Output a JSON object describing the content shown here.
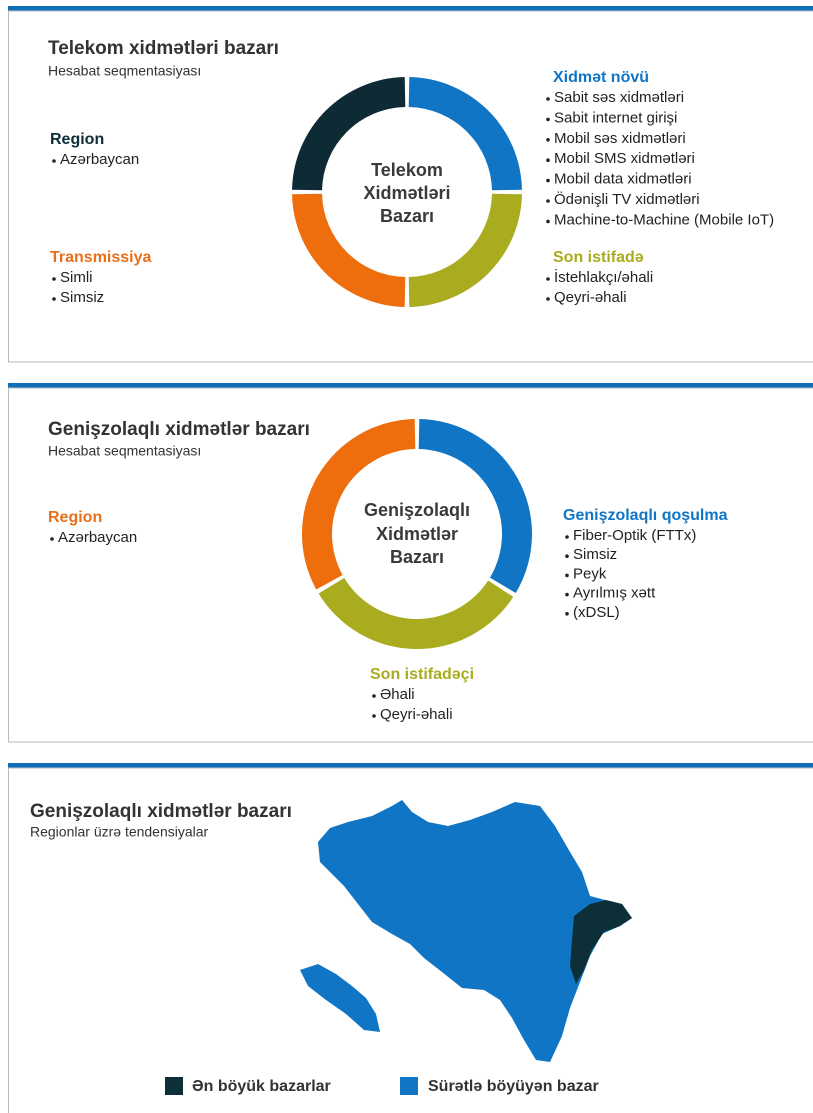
{
  "panels": [
    {
      "title": "Telekom xidmətləri bazarı",
      "subtitle": "Hesabat seqmentasiyası",
      "center_label": [
        "Telekom",
        "Xidmətləri",
        "Bazarı"
      ],
      "groups": [
        {
          "heading": "Region",
          "items": [
            "Azərbaycan"
          ]
        },
        {
          "heading": "Transmissiya",
          "items": [
            "Simli",
            "Simsiz"
          ]
        },
        {
          "heading": "Xidmət növü",
          "items": [
            "Sabit səs xidmətləri",
            "Sabit internet girişi",
            "Mobil səs xidmətləri",
            "Mobil SMS xidmətləri",
            "Mobil data xidmətləri",
            "Ödənişli TV xidmətləri",
            "Machine-to-Machine (Mobile IoT)"
          ]
        },
        {
          "heading": "Son istifadə",
          "items": [
            "İstehlakçı/əhali",
            "Qeyri-əhali"
          ]
        }
      ]
    },
    {
      "title": "Genişzolaqlı xidmətlər bazarı",
      "subtitle": "Hesabat seqmentasiyası",
      "center_label": [
        "Genişzolaqlı",
        "Xidmətlər",
        "Bazarı"
      ],
      "groups": [
        {
          "heading": "Region",
          "items": [
            "Azərbaycan"
          ]
        },
        {
          "heading": "Genişzolaqlı qoşulma",
          "items": [
            "Fiber-Optik (FTTx)",
            "Simsiz",
            "Peyk",
            "Ayrılmış xətt",
            "(xDSL)"
          ]
        },
        {
          "heading": "Son istifadəçi",
          "items": [
            "Əhali",
            "Qeyri-əhali"
          ]
        }
      ]
    },
    {
      "title": "Genişzolaqlı xidmətlər bazarı",
      "subtitle": "Regionlar üzrə tendensiyalar",
      "legend": [
        "Ən böyük bazarlar",
        "Sürətlə böyüyən bazar"
      ]
    }
  ]
}
